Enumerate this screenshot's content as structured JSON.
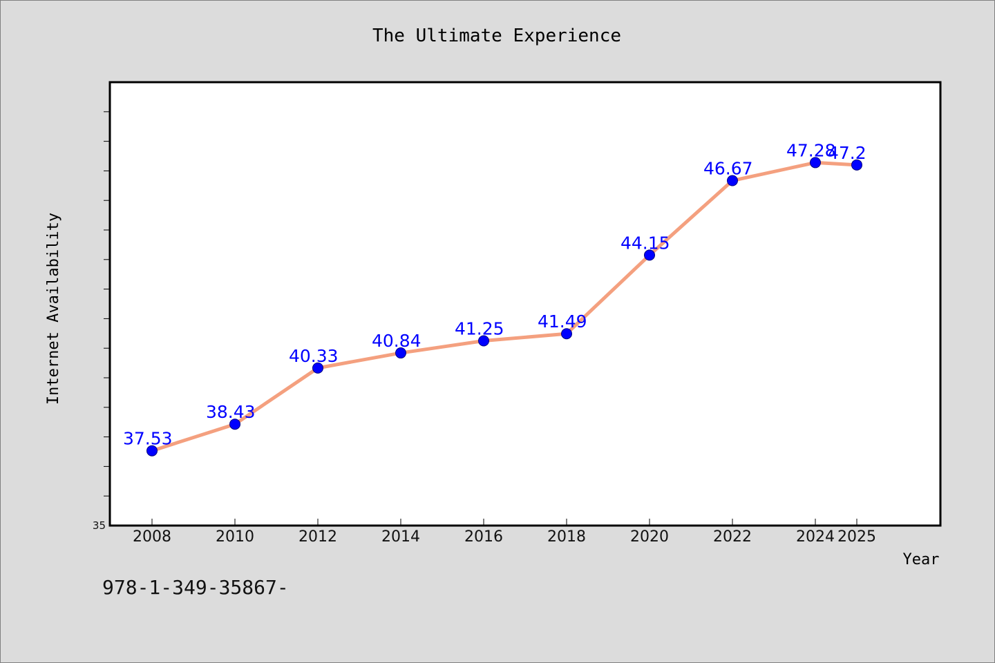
{
  "chart_data": {
    "type": "line",
    "title": "The Ultimate Experience",
    "xlabel": "Year",
    "ylabel": "Internet Availability",
    "x": [
      "2008",
      "2010",
      "2012",
      "2014",
      "2016",
      "2018",
      "2020",
      "2022",
      "2024",
      "2025"
    ],
    "series": [
      {
        "values": [
          37.53,
          38.43,
          40.33,
          40.84,
          41.25,
          41.49,
          44.15,
          46.67,
          47.28,
          47.2
        ]
      }
    ],
    "data_labels": [
      "37.53",
      "38.43",
      "40.33",
      "40.84",
      "41.25",
      "41.49",
      "44.15",
      "46.67",
      "47.28",
      "47.2"
    ],
    "y_tick_labels": [
      "35"
    ],
    "ylim": [
      35,
      50
    ],
    "grid": false,
    "colors": {
      "line": "#f4a07f",
      "marker": "#0000ff",
      "marker_edge": "#000080",
      "label": "#0000ff",
      "background": "#dcdcdc",
      "plot_background": "#ffffff"
    }
  },
  "footnote": "978-1-349-35867-"
}
